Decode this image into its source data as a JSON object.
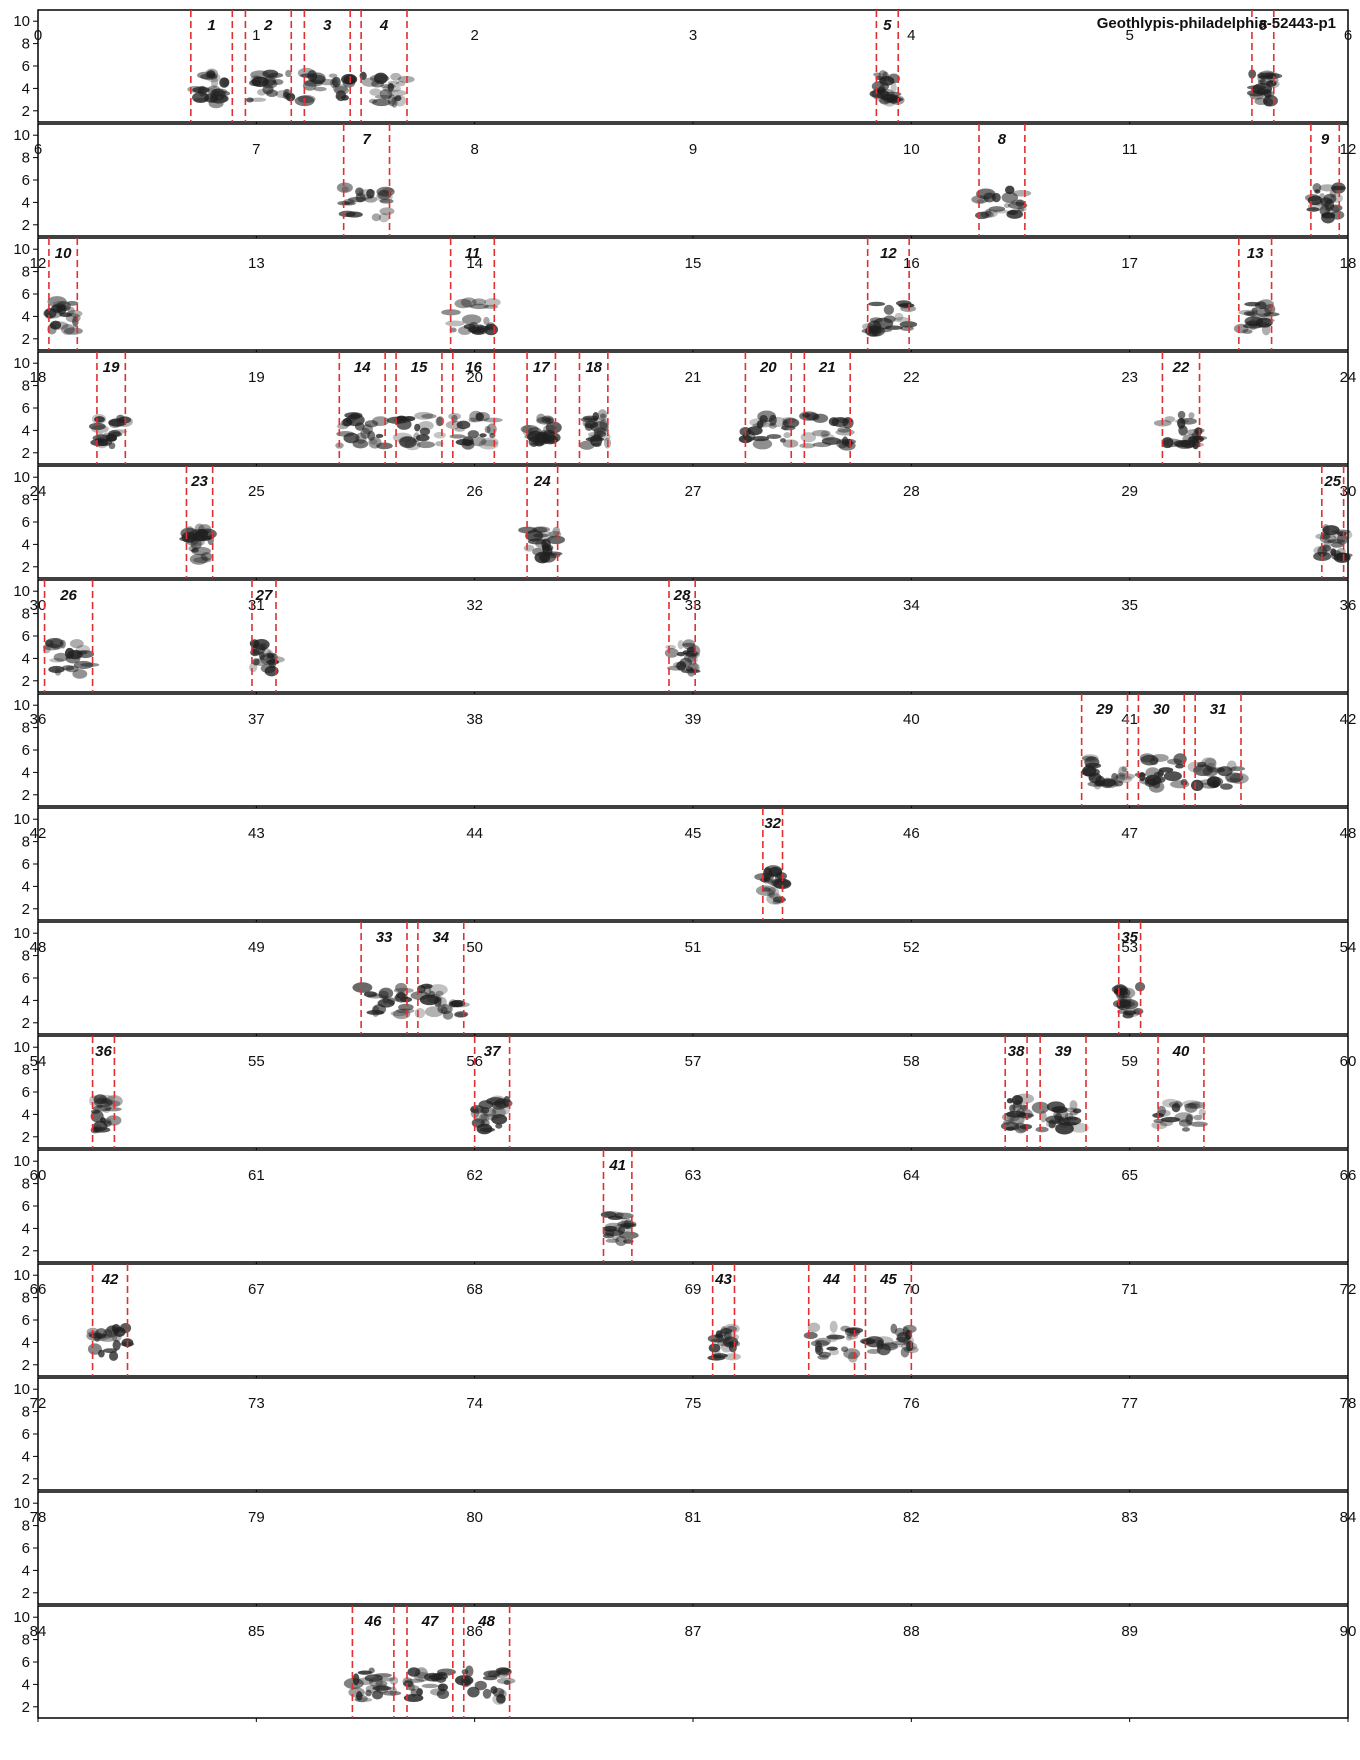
{
  "chart_data": {
    "type": "spectrogram",
    "title": "Geothlypis-philadelphia-52443-p1",
    "x_unit": "s",
    "row_span": 6,
    "xlim": [
      0,
      90
    ],
    "ylim": [
      1,
      11
    ],
    "y_ticks": [
      2,
      4,
      6,
      8,
      10
    ],
    "rows": [
      {
        "start": 0,
        "end": 6,
        "ticks": [
          0,
          1,
          2,
          3,
          4,
          5,
          6
        ]
      },
      {
        "start": 6,
        "end": 12,
        "ticks": [
          6,
          7,
          8,
          9,
          10,
          11,
          12
        ]
      },
      {
        "start": 12,
        "end": 18,
        "ticks": [
          12,
          13,
          14,
          15,
          16,
          17,
          18
        ]
      },
      {
        "start": 18,
        "end": 24,
        "ticks": [
          18,
          19,
          20,
          21,
          22,
          23,
          24
        ]
      },
      {
        "start": 24,
        "end": 30,
        "ticks": [
          24,
          25,
          26,
          27,
          28,
          29,
          30
        ]
      },
      {
        "start": 30,
        "end": 36,
        "ticks": [
          30,
          31,
          32,
          33,
          34,
          35,
          36
        ]
      },
      {
        "start": 36,
        "end": 42,
        "ticks": [
          36,
          37,
          38,
          39,
          40,
          41,
          42
        ]
      },
      {
        "start": 42,
        "end": 48,
        "ticks": [
          42,
          43,
          44,
          45,
          46,
          47,
          48
        ]
      },
      {
        "start": 48,
        "end": 54,
        "ticks": [
          48,
          49,
          50,
          51,
          52,
          53,
          54
        ]
      },
      {
        "start": 54,
        "end": 60,
        "ticks": [
          54,
          55,
          56,
          57,
          58,
          59,
          60
        ]
      },
      {
        "start": 60,
        "end": 66,
        "ticks": [
          60,
          61,
          62,
          63,
          64,
          65,
          66
        ]
      },
      {
        "start": 66,
        "end": 72,
        "ticks": [
          66,
          67,
          68,
          69,
          70,
          71,
          72
        ]
      },
      {
        "start": 72,
        "end": 78,
        "ticks": [
          72,
          73,
          74,
          75,
          76,
          77,
          78
        ]
      },
      {
        "start": 78,
        "end": 84,
        "ticks": [
          78,
          79,
          80,
          81,
          82,
          83,
          84
        ]
      },
      {
        "start": 84,
        "end": 90,
        "ticks": [
          84,
          85,
          86,
          87,
          88,
          89,
          90
        ]
      }
    ],
    "segments": [
      {
        "label": "1",
        "start": 0.7,
        "end": 0.89
      },
      {
        "label": "2",
        "start": 0.95,
        "end": 1.16
      },
      {
        "label": "3",
        "start": 1.22,
        "end": 1.43
      },
      {
        "label": "4",
        "start": 1.48,
        "end": 1.69
      },
      {
        "label": "5",
        "start": 3.84,
        "end": 3.94
      },
      {
        "label": "6",
        "start": 5.56,
        "end": 5.66
      },
      {
        "label": "7",
        "start": 7.4,
        "end": 7.61
      },
      {
        "label": "8",
        "start": 10.31,
        "end": 10.52
      },
      {
        "label": "9",
        "start": 11.83,
        "end": 11.96
      },
      {
        "label": "10",
        "start": 12.05,
        "end": 12.18
      },
      {
        "label": "11",
        "start": 13.89,
        "end": 14.09
      },
      {
        "label": "12",
        "start": 15.8,
        "end": 15.99
      },
      {
        "label": "13",
        "start": 17.5,
        "end": 17.65
      },
      {
        "label": "14",
        "start": 19.38,
        "end": 19.59
      },
      {
        "label": "15",
        "start": 19.64,
        "end": 19.85
      },
      {
        "label": "16",
        "start": 19.9,
        "end": 20.09
      },
      {
        "label": "17",
        "start": 20.24,
        "end": 20.37
      },
      {
        "label": "18",
        "start": 20.48,
        "end": 20.61
      },
      {
        "label": "19",
        "start": 18.27,
        "end": 18.4
      },
      {
        "label": "20",
        "start": 21.24,
        "end": 21.45
      },
      {
        "label": "21",
        "start": 21.51,
        "end": 21.72
      },
      {
        "label": "22",
        "start": 23.15,
        "end": 23.32
      },
      {
        "label": "23",
        "start": 24.68,
        "end": 24.8
      },
      {
        "label": "24",
        "start": 26.24,
        "end": 26.38
      },
      {
        "label": "25",
        "start": 29.88,
        "end": 29.98
      },
      {
        "label": "26",
        "start": 30.03,
        "end": 30.25
      },
      {
        "label": "27",
        "start": 30.98,
        "end": 31.09
      },
      {
        "label": "28",
        "start": 32.89,
        "end": 33.01
      },
      {
        "label": "29",
        "start": 40.78,
        "end": 40.99
      },
      {
        "label": "30",
        "start": 41.04,
        "end": 41.25
      },
      {
        "label": "31",
        "start": 41.3,
        "end": 41.51
      },
      {
        "label": "32",
        "start": 45.32,
        "end": 45.41
      },
      {
        "label": "33",
        "start": 49.48,
        "end": 49.69
      },
      {
        "label": "34",
        "start": 49.74,
        "end": 49.95
      },
      {
        "label": "35",
        "start": 52.95,
        "end": 53.05
      },
      {
        "label": "36",
        "start": 54.25,
        "end": 54.35
      },
      {
        "label": "37",
        "start": 56.0,
        "end": 56.16
      },
      {
        "label": "38",
        "start": 58.43,
        "end": 58.53
      },
      {
        "label": "39",
        "start": 58.59,
        "end": 58.8
      },
      {
        "label": "40",
        "start": 59.13,
        "end": 59.34
      },
      {
        "label": "41",
        "start": 62.59,
        "end": 62.72
      },
      {
        "label": "42",
        "start": 66.25,
        "end": 66.41
      },
      {
        "label": "43",
        "start": 69.09,
        "end": 69.19
      },
      {
        "label": "44",
        "start": 69.53,
        "end": 69.74
      },
      {
        "label": "45",
        "start": 69.79,
        "end": 70.0
      },
      {
        "label": "46",
        "start": 85.44,
        "end": 85.63
      },
      {
        "label": "47",
        "start": 85.69,
        "end": 85.9
      },
      {
        "label": "48",
        "start": 85.95,
        "end": 86.16
      }
    ],
    "colors": {
      "segment_line": "#e03030",
      "spectrogram": "#202020",
      "axis": "#000000"
    },
    "grid": false
  }
}
